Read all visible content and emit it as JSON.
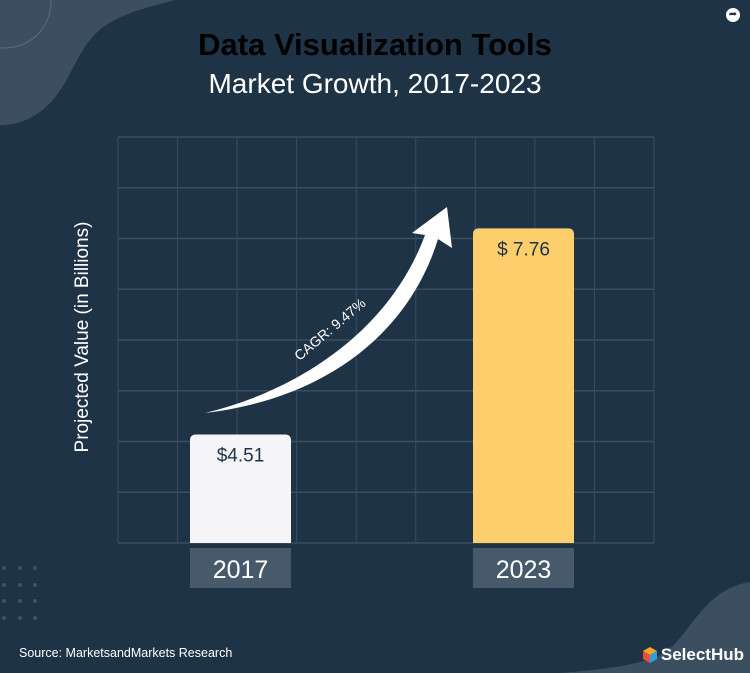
{
  "header": {
    "title": "Data Visualization Tools",
    "subtitle": "Market Growth, 2017-2023"
  },
  "footer": {
    "source": "Source: MarketsandMarkets Research",
    "logo": "SelectHub"
  },
  "icons": {
    "share": "share-icon"
  },
  "colors": {
    "background": "#1f3346",
    "title": "#fdcf6c",
    "bar_2017": "#f5f5f7",
    "bar_2023": "#fdcf6c",
    "label_box": "#465a6c",
    "grid": "#3a4e61"
  },
  "chart_data": {
    "type": "bar",
    "title": "Data Visualization Tools",
    "subtitle": "Market Growth, 2017-2023",
    "ylabel": "Projected Value (in Billions)",
    "xlabel": "",
    "categories": [
      "2017",
      "2023"
    ],
    "values": [
      4.51,
      7.76
    ],
    "data_labels": [
      "$4.51",
      "$ 7.76"
    ],
    "ylim": [
      2.8,
      9.2
    ],
    "grid": true,
    "annotations": [
      {
        "text": "CAGR: 9.47%",
        "type": "curved-arrow",
        "from": "2017",
        "to": "2023"
      }
    ]
  }
}
